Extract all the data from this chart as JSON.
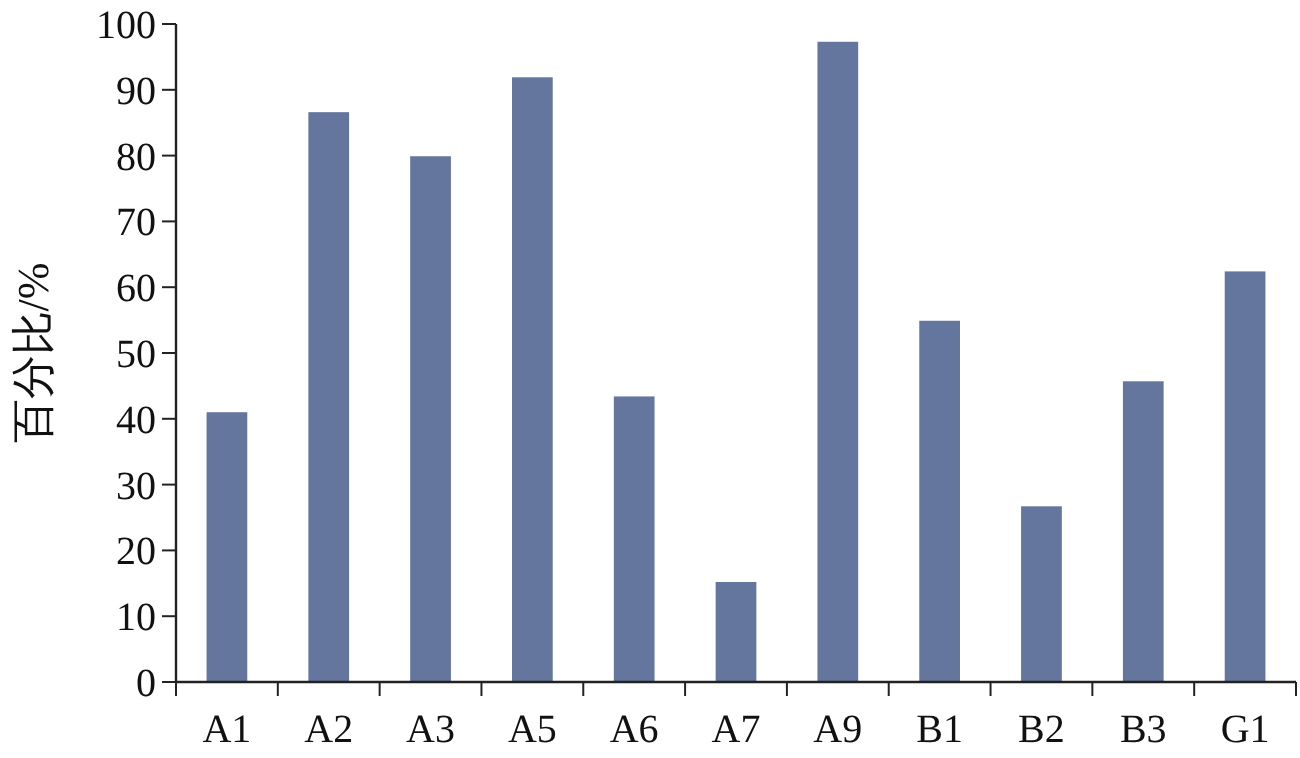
{
  "chart_data": {
    "type": "bar",
    "ylabel": "百分比/%",
    "categories": [
      "A1",
      "A2",
      "A3",
      "A5",
      "A6",
      "A7",
      "A9",
      "B1",
      "B2",
      "B3",
      "G1"
    ],
    "values": [
      41.0,
      86.6,
      79.9,
      91.9,
      43.4,
      15.2,
      97.3,
      54.9,
      26.7,
      45.7,
      62.4
    ],
    "color": "#64769e",
    "ylim": [
      0,
      100
    ],
    "yticks": [
      0,
      10,
      20,
      30,
      40,
      50,
      60,
      70,
      80,
      90,
      100
    ],
    "grid": false
  }
}
